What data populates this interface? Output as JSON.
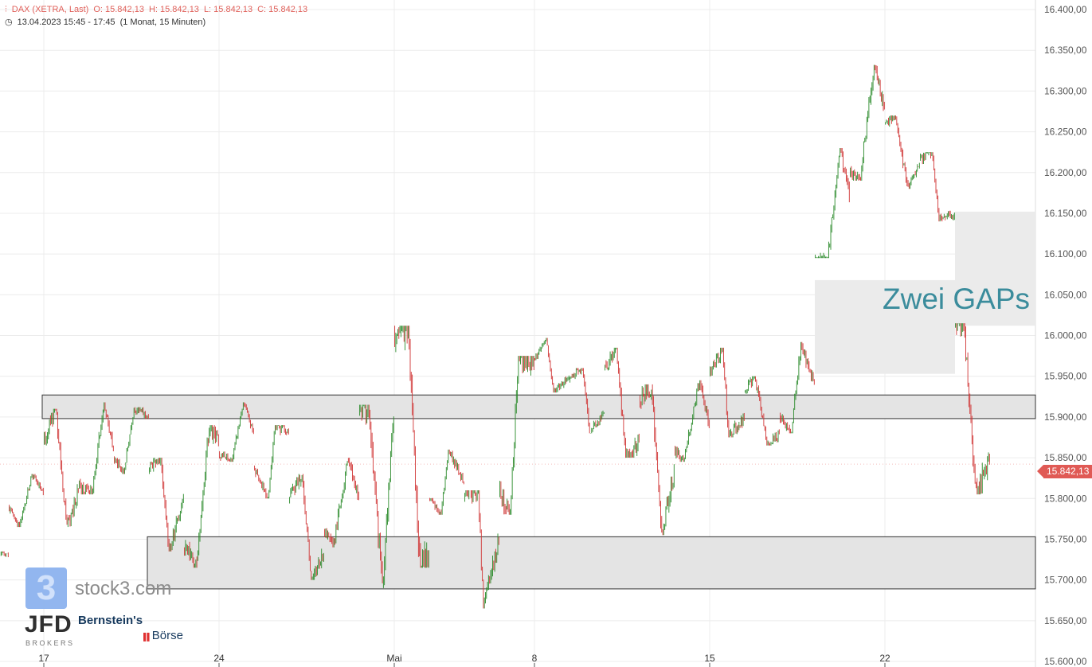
{
  "header": {
    "instrument": "DAX (XETRA, Last)",
    "open": "O: 15.842,13",
    "high": "H: 15.842,13",
    "low": "L: 15.842,13",
    "close": "C: 15.842,13",
    "timerange": "13.04.2023 15:45 - 17:45",
    "period": "(1 Monat, 15 Minuten)",
    "icons": [
      "candlestick-chart-icon",
      "clock-icon"
    ]
  },
  "last_price": "15.842,13",
  "annotation": "Zwei GAPs",
  "watermarks": {
    "stock3": "stock3.com",
    "stock3_logo": "3",
    "jfd": "JFD",
    "jfd_sub": "BROKERS",
    "bernstein": "Bernstein's",
    "boerse": "Börse"
  },
  "colors": {
    "up": "#2a8a2a",
    "down": "#d03333",
    "header": "#e0605a",
    "annotation": "#3b8c9c",
    "badge": "#e05a55",
    "zone": "#e4e4e4"
  },
  "chart_data": {
    "type": "candlestick",
    "interval": "15 Minuten",
    "ylim": [
      15600,
      16400
    ],
    "yticks": [
      "15.600,00",
      "15.650,00",
      "15.700,00",
      "15.750,00",
      "15.800,00",
      "15.850,00",
      "15.900,00",
      "15.950,00",
      "16.000,00",
      "16.050,00",
      "16.100,00",
      "16.150,00",
      "16.200,00",
      "16.250,00",
      "16.300,00",
      "16.350,00",
      "16.400,00"
    ],
    "xticks": [
      {
        "label": "17",
        "date": "2023-04-17"
      },
      {
        "label": "24",
        "date": "2023-04-24"
      },
      {
        "label": "Mai",
        "date": "2023-05-02"
      },
      {
        "label": "8",
        "date": "2023-05-08"
      },
      {
        "label": "15",
        "date": "2023-05-15"
      },
      {
        "label": "22",
        "date": "2023-05-22"
      }
    ],
    "grid": true,
    "daily": [
      {
        "date": "2023-04-13",
        "o": 15690,
        "h": 15735,
        "l": 15670,
        "c": 15730
      },
      {
        "date": "2023-04-14",
        "o": 15790,
        "h": 15830,
        "l": 15765,
        "c": 15806
      },
      {
        "date": "2023-04-17",
        "o": 15870,
        "h": 15910,
        "l": 15765,
        "c": 15810
      },
      {
        "date": "2023-04-18",
        "o": 15816,
        "h": 15918,
        "l": 15805,
        "c": 15860
      },
      {
        "date": "2023-04-19",
        "o": 15850,
        "h": 15912,
        "l": 15830,
        "c": 15900
      },
      {
        "date": "2023-04-20",
        "o": 15835,
        "h": 15850,
        "l": 15735,
        "c": 15800
      },
      {
        "date": "2023-04-21",
        "o": 15740,
        "h": 15890,
        "l": 15715,
        "c": 15870
      },
      {
        "date": "2023-04-24",
        "o": 15855,
        "h": 15918,
        "l": 15845,
        "c": 15880
      },
      {
        "date": "2023-04-25",
        "o": 15840,
        "h": 15890,
        "l": 15800,
        "c": 15880
      },
      {
        "date": "2023-04-26",
        "o": 15800,
        "h": 15830,
        "l": 15700,
        "c": 15730
      },
      {
        "date": "2023-04-27",
        "o": 15760,
        "h": 15850,
        "l": 15740,
        "c": 15800
      },
      {
        "date": "2023-04-28",
        "o": 15905,
        "h": 15915,
        "l": 15690,
        "c": 15900
      },
      {
        "date": "2023-05-02",
        "o": 16010,
        "h": 16012,
        "l": 15715,
        "c": 15730
      },
      {
        "date": "2023-05-03",
        "o": 15800,
        "h": 15860,
        "l": 15780,
        "c": 15820
      },
      {
        "date": "2023-05-04",
        "o": 15800,
        "h": 15810,
        "l": 15665,
        "c": 15750
      },
      {
        "date": "2023-05-05",
        "o": 15810,
        "h": 15975,
        "l": 15780,
        "c": 15965
      },
      {
        "date": "2023-05-08",
        "o": 15970,
        "h": 15997,
        "l": 15930,
        "c": 15950
      },
      {
        "date": "2023-05-09",
        "o": 15945,
        "h": 15960,
        "l": 15880,
        "c": 15905
      },
      {
        "date": "2023-05-10",
        "o": 15960,
        "h": 15985,
        "l": 15850,
        "c": 15870
      },
      {
        "date": "2023-05-11",
        "o": 15920,
        "h": 15940,
        "l": 15755,
        "c": 15835
      },
      {
        "date": "2023-05-12",
        "o": 15860,
        "h": 15945,
        "l": 15845,
        "c": 15890
      },
      {
        "date": "2023-05-15",
        "o": 15950,
        "h": 15985,
        "l": 15875,
        "c": 15900
      },
      {
        "date": "2023-05-16",
        "o": 15930,
        "h": 15950,
        "l": 15865,
        "c": 15880
      },
      {
        "date": "2023-05-17",
        "o": 15900,
        "h": 15992,
        "l": 15880,
        "c": 15940
      },
      {
        "date": "2023-05-18",
        "o": 16070,
        "h": 16230,
        "l": 16095,
        "c": 16170
      },
      {
        "date": "2023-05-19",
        "o": 16200,
        "h": 16332,
        "l": 16190,
        "c": 16280
      },
      {
        "date": "2023-05-22",
        "o": 16260,
        "h": 16270,
        "l": 16180,
        "c": 16210
      },
      {
        "date": "2023-05-23",
        "o": 16215,
        "h": 16225,
        "l": 16140,
        "c": 16150
      },
      {
        "date": "2023-05-24",
        "o": 16010,
        "h": 16015,
        "l": 15805,
        "c": 15842
      }
    ],
    "zones": [
      {
        "name": "resistance-zone",
        "from": "2023-04-17",
        "top": 15927,
        "bottom": 15898
      },
      {
        "name": "support-zone",
        "from": "2023-04-20",
        "top": 15753,
        "bottom": 15689
      }
    ],
    "gaps": [
      {
        "name": "gap-1",
        "from": "2023-05-18",
        "to": "2023-05-23",
        "top": 16068,
        "bottom": 15953
      },
      {
        "name": "gap-2",
        "from": "2023-05-24",
        "top": 16152,
        "bottom": 16012
      }
    ]
  }
}
